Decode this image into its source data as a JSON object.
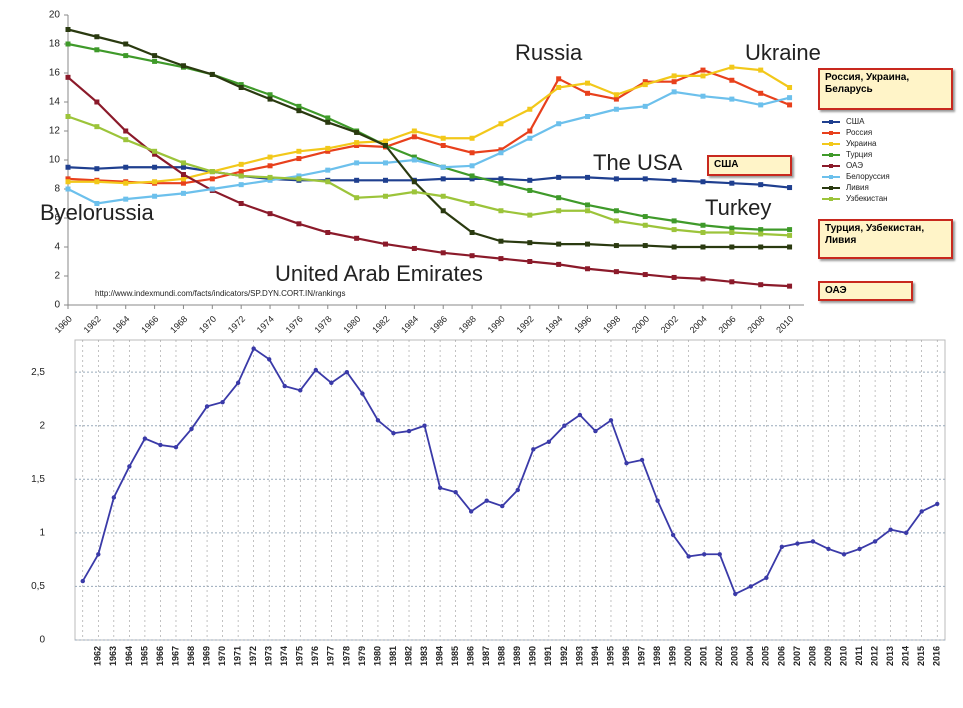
{
  "chart_data": [
    {
      "type": "line",
      "x": [
        1960,
        1962,
        1964,
        1966,
        1968,
        1970,
        1972,
        1974,
        1976,
        1978,
        1980,
        1982,
        1984,
        1986,
        1988,
        1990,
        1992,
        1994,
        1996,
        1998,
        2000,
        2002,
        2004,
        2006,
        2008,
        2010
      ],
      "xlim": [
        1960,
        2011
      ],
      "xticks": [
        1960,
        1962,
        1964,
        1966,
        1968,
        1970,
        1972,
        1974,
        1976,
        1978,
        1980,
        1982,
        1984,
        1986,
        1988,
        1990,
        1992,
        1994,
        1996,
        1998,
        2000,
        2002,
        2004,
        2006,
        2008,
        2010
      ],
      "ylim": [
        0,
        20
      ],
      "yticks": [
        0,
        2,
        4,
        6,
        8,
        10,
        12,
        14,
        16,
        18,
        20
      ],
      "grid": false,
      "legend": "right",
      "series": [
        {
          "name": "США",
          "color": "#1f3f8f",
          "values": [
            9.5,
            9.4,
            9.5,
            9.5,
            9.5,
            9.2,
            8.9,
            8.7,
            8.6,
            8.6,
            8.6,
            8.6,
            8.6,
            8.7,
            8.7,
            8.7,
            8.6,
            8.8,
            8.8,
            8.7,
            8.7,
            8.6,
            8.5,
            8.4,
            8.3,
            8.1
          ]
        },
        {
          "name": "Россия",
          "color": "#e8401c",
          "values": [
            8.7,
            8.6,
            8.5,
            8.4,
            8.4,
            8.7,
            9.2,
            9.6,
            10.1,
            10.6,
            11.0,
            10.9,
            11.6,
            11.0,
            10.5,
            10.7,
            12.0,
            15.6,
            14.6,
            14.2,
            15.4,
            15.4,
            16.2,
            15.5,
            14.6,
            13.8
          ]
        },
        {
          "name": "Украина",
          "color": "#f2c81a",
          "values": [
            8.5,
            8.5,
            8.4,
            8.5,
            8.7,
            9.2,
            9.7,
            10.2,
            10.6,
            10.8,
            11.2,
            11.3,
            12.0,
            11.5,
            11.5,
            12.5,
            13.5,
            15.0,
            15.3,
            14.5,
            15.2,
            15.8,
            15.8,
            16.4,
            16.2,
            15.0
          ]
        },
        {
          "name": "Турция",
          "color": "#3f9a2a",
          "values": [
            18.0,
            17.6,
            17.2,
            16.8,
            16.4,
            15.9,
            15.2,
            14.5,
            13.7,
            12.9,
            12.0,
            11.0,
            10.2,
            9.5,
            8.9,
            8.4,
            7.9,
            7.4,
            6.9,
            6.5,
            6.1,
            5.8,
            5.5,
            5.3,
            5.2,
            5.2
          ]
        },
        {
          "name": "ОАЭ",
          "color": "#8b1a2a",
          "values": [
            15.7,
            14.0,
            12.0,
            10.4,
            9.0,
            7.9,
            7.0,
            6.3,
            5.6,
            5.0,
            4.6,
            4.2,
            3.9,
            3.6,
            3.4,
            3.2,
            3.0,
            2.8,
            2.5,
            2.3,
            2.1,
            1.9,
            1.8,
            1.6,
            1.4,
            1.3
          ]
        },
        {
          "name": "Белоруссия",
          "color": "#6cc0ec",
          "values": [
            8.0,
            7.0,
            7.3,
            7.5,
            7.7,
            8.0,
            8.3,
            8.6,
            8.9,
            9.3,
            9.8,
            9.8,
            10.0,
            9.5,
            9.6,
            10.5,
            11.5,
            12.5,
            13.0,
            13.5,
            13.7,
            14.7,
            14.4,
            14.2,
            13.8,
            14.3
          ]
        },
        {
          "name": "Ливия",
          "color": "#2a3a10",
          "values": [
            19.0,
            18.5,
            18.0,
            17.2,
            16.5,
            15.9,
            15.0,
            14.2,
            13.4,
            12.6,
            11.9,
            11.0,
            8.5,
            6.5,
            5.0,
            4.4,
            4.3,
            4.2,
            4.2,
            4.1,
            4.1,
            4.0,
            4.0,
            4.0,
            4.0,
            4.0
          ]
        },
        {
          "name": "Узбекистан",
          "color": "#9cc43a",
          "values": [
            13.0,
            12.3,
            11.4,
            10.6,
            9.8,
            9.2,
            8.9,
            8.8,
            8.7,
            8.5,
            7.4,
            7.5,
            7.8,
            7.5,
            7.0,
            6.5,
            6.2,
            6.5,
            6.5,
            5.8,
            5.5,
            5.2,
            5.0,
            5.0,
            4.9,
            4.8
          ]
        }
      ],
      "annotations": [
        "Russia",
        "Ukraine",
        "The USA",
        "Byelorussia",
        "Turkey",
        "United Arab Emirates"
      ],
      "callouts": [
        "Россия, Украина, Беларусь",
        "США",
        "Турция, Узбекистан, Ливия",
        "ОАЭ"
      ],
      "source": "http://www.indexmundi.com/facts/indicators/SP.DYN.CORT.IN/rankings"
    },
    {
      "type": "line",
      "categories": [
        null,
        "1962",
        "1963",
        "1964",
        "1965",
        "1966",
        "1967",
        "1968",
        "1969",
        "1970",
        "1971",
        "1972",
        "1973",
        "1974",
        "1975",
        "1976",
        "1977",
        "1978",
        "1979",
        "1980",
        "1981",
        "1982",
        "1983",
        "1984",
        "1985",
        "1986",
        "1987",
        "1988",
        "1989",
        "1990",
        "1991",
        "1992",
        "1993",
        "1994",
        "1995",
        "1996",
        "1997",
        "1998",
        "1999",
        "2000",
        "2001",
        "2002",
        "2003",
        "2004",
        "2005",
        "2006",
        "2007",
        "2008",
        "2009",
        "2010",
        "2011",
        "2012",
        "2013",
        "2014",
        "2015",
        "2016"
      ],
      "values": [
        0.55,
        0.8,
        1.33,
        1.62,
        1.88,
        1.82,
        1.8,
        1.97,
        2.18,
        2.22,
        2.4,
        2.72,
        2.62,
        2.37,
        2.33,
        2.52,
        2.4,
        2.5,
        2.3,
        2.05,
        1.93,
        1.95,
        2.0,
        1.42,
        1.38,
        1.2,
        1.3,
        1.25,
        1.4,
        1.78,
        1.85,
        2.0,
        2.1,
        1.95,
        2.05,
        1.65,
        1.68,
        1.3,
        0.98,
        0.78,
        0.8,
        0.8,
        0.43,
        0.5,
        0.58,
        0.87,
        0.9,
        0.92,
        0.85,
        0.8,
        0.85,
        0.92,
        1.03,
        1.0,
        1.2,
        1.27
      ],
      "color": "#3a3aa8",
      "ylim": [
        0,
        2.8
      ],
      "yticks": [
        0,
        {
          "value": 0.5,
          "label": "0,5"
        },
        1,
        {
          "value": 1.5,
          "label": "1,5"
        },
        2,
        {
          "value": 2.5,
          "label": "2,5"
        }
      ],
      "grid": true
    }
  ]
}
